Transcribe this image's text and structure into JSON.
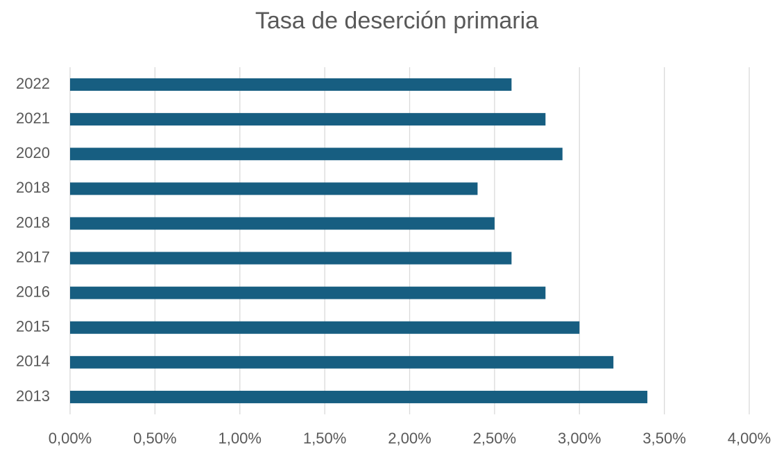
{
  "chart_data": {
    "type": "bar",
    "orientation": "horizontal",
    "title": "Tasa de deserción primaria",
    "categories": [
      "2022",
      "2021",
      "2020",
      "2018",
      "2018",
      "2017",
      "2016",
      "2015",
      "2014",
      "2013"
    ],
    "values": [
      2.6,
      2.8,
      2.9,
      2.4,
      2.5,
      2.6,
      2.8,
      3.0,
      3.2,
      3.4
    ],
    "color": "#175e81",
    "xlim": [
      0,
      4
    ],
    "xticks": [
      {
        "value": 0,
        "label": "0,00%"
      },
      {
        "value": 0.5,
        "label": "0,50%"
      },
      {
        "value": 1,
        "label": "1,00%"
      },
      {
        "value": 1.5,
        "label": "1,50%"
      },
      {
        "value": 2,
        "label": "2,00%"
      },
      {
        "value": 2.5,
        "label": "2,50%"
      },
      {
        "value": 3,
        "label": "3,00%"
      },
      {
        "value": 3.5,
        "label": "3,50%"
      },
      {
        "value": 4,
        "label": "4,00%"
      }
    ],
    "grid": true
  }
}
